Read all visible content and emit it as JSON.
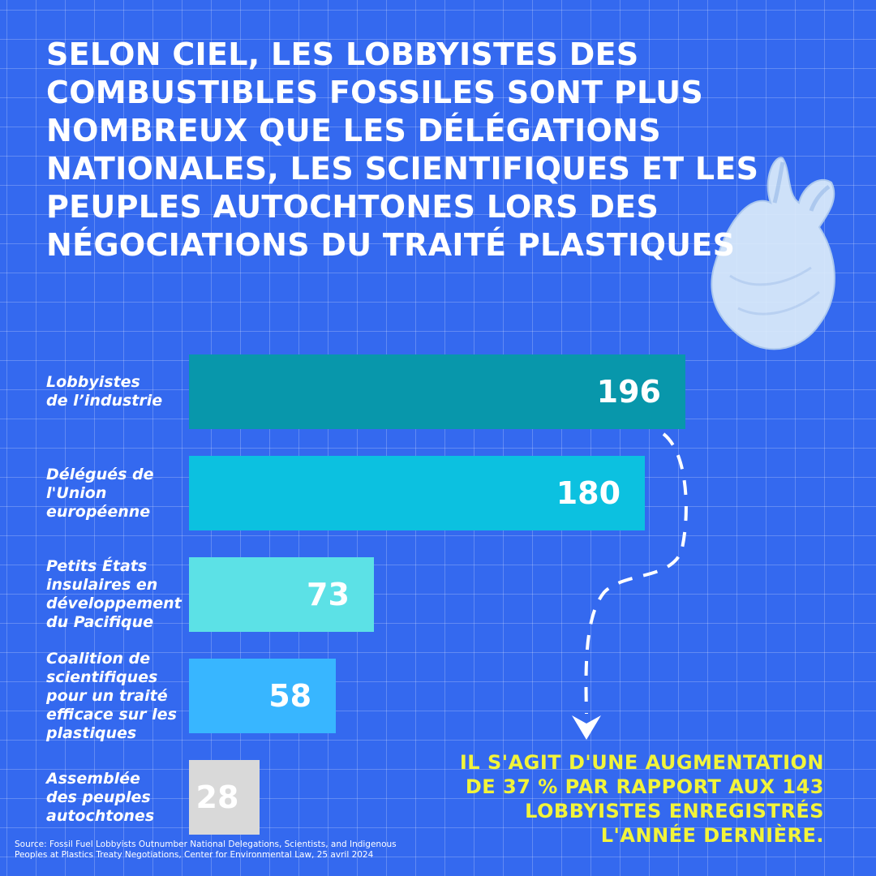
{
  "chart_data": {
    "type": "bar",
    "orientation": "horizontal",
    "title": "SELON CIEL, LES LOBBYISTES DES\nCOMBUSTIBLES FOSSILES SONT PLUS\nNOMBREUX QUE LES DÉLÉGATIONS\nNATIONALES, LES SCIENTIFIQUES ET LES\nPEUPLES AUTOCHTONES LORS DES\nNÉGOCIATIONS DU TRAITÉ PLASTIQUES",
    "categories": [
      "Lobbyistes\nde l’industrie",
      "Délégués de\nl'Union\neuropéenne",
      "Petits États\ninsulaires en\ndéveloppement\ndu Pacifique",
      "Coalition de\nscientifiques\npour un traité\nefficace sur les\nplastiques",
      "Assemblée\ndes peuples\nautochtones"
    ],
    "values": [
      196,
      180,
      73,
      58,
      28
    ],
    "colors": [
      "#0897ab",
      "#0cc1e0",
      "#5ce1e6",
      "#38b6ff",
      "#d9d9d9"
    ],
    "annotation": "IL S'AGIT D'UNE AUGMENTATION\nDE 37 % PAR RAPPORT AUX 143\nLOBBYISTES ENREGISTRÉS\nL'ANNÉE DERNIÈRE.",
    "source": "Source: Fossil Fuel Lobbyists Outnumber National Delegations, Scientists, and Indigenous\nPeoples at Plastics Treaty Negotiations, Center for Environmental Law, 25 avril 2024"
  }
}
